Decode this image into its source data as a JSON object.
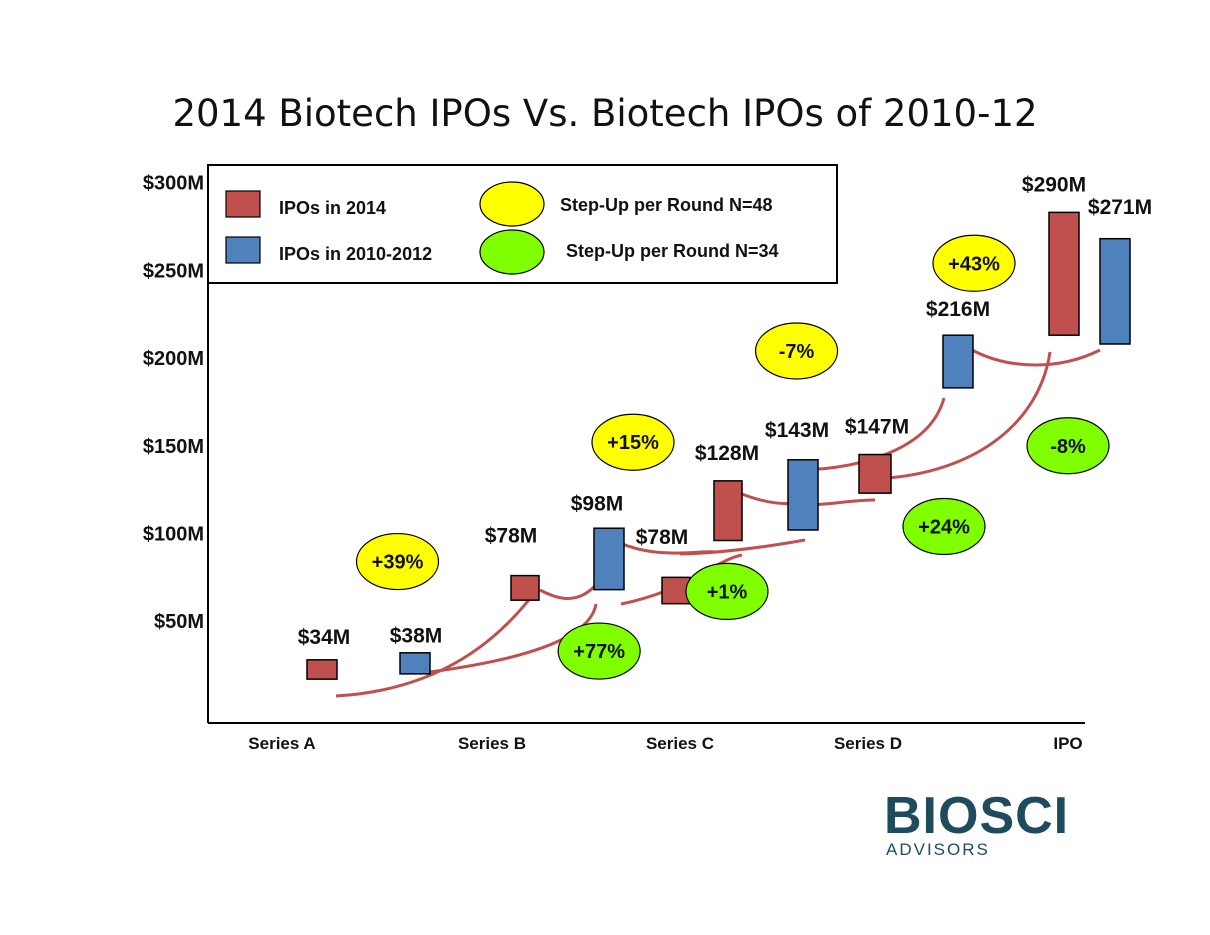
{
  "chart_data": {
    "type": "bar",
    "title": "2014 Biotech IPOs Vs. Biotech IPOs of 2010-12",
    "categories": [
      "Series A",
      "Series B",
      "Series C",
      "Series D",
      "IPO"
    ],
    "y_ticks": [
      {
        "value": 50,
        "label": "$50M"
      },
      {
        "value": 100,
        "label": "$100M"
      },
      {
        "value": 150,
        "label": "$150M"
      },
      {
        "value": 200,
        "label": "$200M"
      },
      {
        "value": 250,
        "label": "$250M"
      },
      {
        "value": 300,
        "label": "$300M"
      }
    ],
    "ylim": [
      -8,
      310
    ],
    "series": [
      {
        "name": "IPOs in 2014",
        "color": "#c0504d",
        "values": [
          {
            "category": "Series A",
            "top": 28,
            "bottom": 17,
            "label": "$34M"
          },
          {
            "category": "Series B",
            "top": 76,
            "bottom": 62,
            "label": "$78M"
          },
          {
            "category": "Series C",
            "top": 130,
            "bottom": 96,
            "label": "$128M"
          },
          {
            "category": "Series D",
            "top": 145,
            "bottom": 123,
            "label": "$147M"
          },
          {
            "category": "IPO",
            "top": 283,
            "bottom": 213,
            "label": "$290M"
          }
        ]
      },
      {
        "name": "IPOs in 2010-2012",
        "color": "#4f81bd",
        "values": [
          {
            "category": "Series A",
            "top": 32,
            "bottom": 20,
            "label": "$38M"
          },
          {
            "category": "Series B",
            "top": 103,
            "bottom": 68,
            "label": "$98M"
          },
          {
            "category": "Series C",
            "top": 142,
            "bottom": 102,
            "label": "$143M"
          },
          {
            "category": "Series D",
            "top": 213,
            "bottom": 183,
            "label": "$216M"
          },
          {
            "category": "IPO",
            "top": 268,
            "bottom": 208,
            "label": "$271M"
          }
        ]
      },
      {
        "name": "IPOs in 2014 (extra)",
        "color": "#c0504d",
        "values": [
          {
            "category": "Series B",
            "top": 75,
            "bottom": 60,
            "label": "$78M"
          }
        ]
      }
    ],
    "step_ups": [
      {
        "label": "+39%",
        "group": "N=48",
        "color": "#ffff00",
        "x": 1.55,
        "y": 84
      },
      {
        "label": "+15%",
        "group": "N=48",
        "color": "#ffff00",
        "x": 2.75,
        "y": 152
      },
      {
        "label": "-7%",
        "group": "N=48",
        "color": "#ffff00",
        "x": 3.62,
        "y": 204
      },
      {
        "label": "+43%",
        "group": "N=48",
        "color": "#ffff00",
        "x": 4.53,
        "y": 254
      },
      {
        "label": "+77%",
        "group": "N=34",
        "color": "#80ff00",
        "x": 2.57,
        "y": 33
      },
      {
        "label": "+1%",
        "group": "N=34",
        "color": "#80ff00",
        "x": 3.25,
        "y": 67
      },
      {
        "label": "+24%",
        "group": "N=34",
        "color": "#80ff00",
        "x": 4.38,
        "y": 104
      },
      {
        "label": "-8%",
        "group": "N=34",
        "color": "#80ff00",
        "x": 5.08,
        "y": 150
      }
    ],
    "legend": {
      "position": "top-left",
      "items": [
        {
          "label": "IPOs in 2014",
          "color": "#c0504d",
          "shape": "square"
        },
        {
          "label": "IPOs in 2010-2012",
          "color": "#4f81bd",
          "shape": "square"
        },
        {
          "label": "Step-Up per Round N=48",
          "color": "#ffff00",
          "shape": "ellipse"
        },
        {
          "label": "Step-Up per Round N=34",
          "color": "#80ff00",
          "shape": "ellipse"
        }
      ]
    },
    "connector_color": "#c0504d"
  },
  "logo": {
    "name": "BIOSCI",
    "subtitle": "ADVISORS",
    "color": "#1f4b5e"
  }
}
